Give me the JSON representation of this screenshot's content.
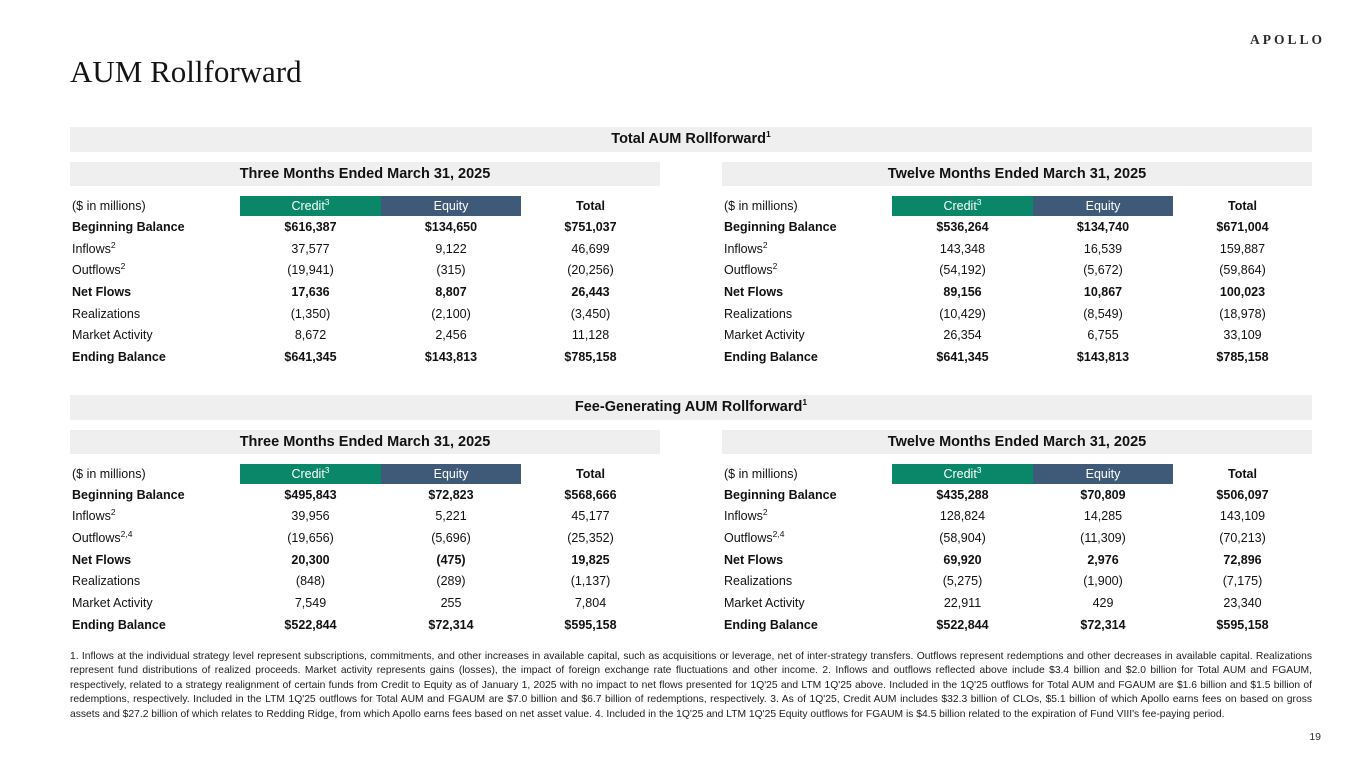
{
  "brand": "APOLLO",
  "page_title": "AUM Rollforward",
  "page_number": "19",
  "colors": {
    "credit_header_bg": "#0A8768",
    "equity_header_bg": "#3F5A78",
    "band_bg": "#EFEFEF",
    "header_text": "#FFFFFF"
  },
  "sections": [
    {
      "title": "Total AUM Rollforward",
      "title_sup": "1",
      "tables": [
        {
          "period": "Three Months Ended March 31, 2025",
          "unit_label": "($ in millions)",
          "columns": [
            {
              "label": "Credit",
              "sup": "3",
              "bg": "credit"
            },
            {
              "label": "Equity",
              "sup": "",
              "bg": "equity"
            },
            {
              "label": "Total",
              "sup": "",
              "bg": "none"
            }
          ],
          "rows": [
            {
              "label": "Beginning Balance",
              "sup": "",
              "bold": true,
              "values": [
                "$616,387",
                "$134,650",
                "$751,037"
              ]
            },
            {
              "label": "Inflows",
              "sup": "2",
              "bold": false,
              "values": [
                "37,577",
                "9,122",
                "46,699"
              ]
            },
            {
              "label": "Outflows",
              "sup": "2",
              "bold": false,
              "values": [
                "(19,941)",
                "(315)",
                "(20,256)"
              ]
            },
            {
              "label": "Net Flows",
              "sup": "",
              "bold": true,
              "values": [
                "17,636",
                "8,807",
                "26,443"
              ]
            },
            {
              "label": "Realizations",
              "sup": "",
              "bold": false,
              "values": [
                "(1,350)",
                "(2,100)",
                "(3,450)"
              ]
            },
            {
              "label": "Market Activity",
              "sup": "",
              "bold": false,
              "values": [
                "8,672",
                "2,456",
                "11,128"
              ]
            },
            {
              "label": "Ending Balance",
              "sup": "",
              "bold": true,
              "values": [
                "$641,345",
                "$143,813",
                "$785,158"
              ]
            }
          ]
        },
        {
          "period": "Twelve Months Ended March 31, 2025",
          "unit_label": "($ in millions)",
          "columns": [
            {
              "label": "Credit",
              "sup": "3",
              "bg": "credit"
            },
            {
              "label": "Equity",
              "sup": "",
              "bg": "equity"
            },
            {
              "label": "Total",
              "sup": "",
              "bg": "none"
            }
          ],
          "rows": [
            {
              "label": "Beginning Balance",
              "sup": "",
              "bold": true,
              "values": [
                "$536,264",
                "$134,740",
                "$671,004"
              ]
            },
            {
              "label": "Inflows",
              "sup": "2",
              "bold": false,
              "values": [
                "143,348",
                "16,539",
                "159,887"
              ]
            },
            {
              "label": "Outflows",
              "sup": "2",
              "bold": false,
              "values": [
                "(54,192)",
                "(5,672)",
                "(59,864)"
              ]
            },
            {
              "label": "Net Flows",
              "sup": "",
              "bold": true,
              "values": [
                "89,156",
                "10,867",
                "100,023"
              ]
            },
            {
              "label": "Realizations",
              "sup": "",
              "bold": false,
              "values": [
                "(10,429)",
                "(8,549)",
                "(18,978)"
              ]
            },
            {
              "label": "Market Activity",
              "sup": "",
              "bold": false,
              "values": [
                "26,354",
                "6,755",
                "33,109"
              ]
            },
            {
              "label": "Ending Balance",
              "sup": "",
              "bold": true,
              "values": [
                "$641,345",
                "$143,813",
                "$785,158"
              ]
            }
          ]
        }
      ]
    },
    {
      "title": "Fee-Generating AUM Rollforward",
      "title_sup": "1",
      "tables": [
        {
          "period": "Three Months Ended March 31, 2025",
          "unit_label": "($ in millions)",
          "columns": [
            {
              "label": "Credit",
              "sup": "3",
              "bg": "credit"
            },
            {
              "label": "Equity",
              "sup": "",
              "bg": "equity"
            },
            {
              "label": "Total",
              "sup": "",
              "bg": "none"
            }
          ],
          "rows": [
            {
              "label": "Beginning Balance",
              "sup": "",
              "bold": true,
              "values": [
                "$495,843",
                "$72,823",
                "$568,666"
              ]
            },
            {
              "label": "Inflows",
              "sup": "2",
              "bold": false,
              "values": [
                "39,956",
                "5,221",
                "45,177"
              ]
            },
            {
              "label": "Outflows",
              "sup": "2,4",
              "bold": false,
              "values": [
                "(19,656)",
                "(5,696)",
                "(25,352)"
              ]
            },
            {
              "label": "Net Flows",
              "sup": "",
              "bold": true,
              "values": [
                "20,300",
                "(475)",
                "19,825"
              ]
            },
            {
              "label": "Realizations",
              "sup": "",
              "bold": false,
              "values": [
                "(848)",
                "(289)",
                "(1,137)"
              ]
            },
            {
              "label": "Market Activity",
              "sup": "",
              "bold": false,
              "values": [
                "7,549",
                "255",
                "7,804"
              ]
            },
            {
              "label": "Ending Balance",
              "sup": "",
              "bold": true,
              "values": [
                "$522,844",
                "$72,314",
                "$595,158"
              ]
            }
          ]
        },
        {
          "period": "Twelve Months Ended March 31, 2025",
          "unit_label": "($ in millions)",
          "columns": [
            {
              "label": "Credit",
              "sup": "3",
              "bg": "credit"
            },
            {
              "label": "Equity",
              "sup": "",
              "bg": "equity"
            },
            {
              "label": "Total",
              "sup": "",
              "bg": "none"
            }
          ],
          "rows": [
            {
              "label": "Beginning Balance",
              "sup": "",
              "bold": true,
              "values": [
                "$435,288",
                "$70,809",
                "$506,097"
              ]
            },
            {
              "label": "Inflows",
              "sup": "2",
              "bold": false,
              "values": [
                "128,824",
                "14,285",
                "143,109"
              ]
            },
            {
              "label": "Outflows",
              "sup": "2,4",
              "bold": false,
              "values": [
                "(58,904)",
                "(11,309)",
                "(70,213)"
              ]
            },
            {
              "label": "Net Flows",
              "sup": "",
              "bold": true,
              "values": [
                "69,920",
                "2,976",
                "72,896"
              ]
            },
            {
              "label": "Realizations",
              "sup": "",
              "bold": false,
              "values": [
                "(5,275)",
                "(1,900)",
                "(7,175)"
              ]
            },
            {
              "label": "Market Activity",
              "sup": "",
              "bold": false,
              "values": [
                "22,911",
                "429",
                "23,340"
              ]
            },
            {
              "label": "Ending Balance",
              "sup": "",
              "bold": true,
              "values": [
                "$522,844",
                "$72,314",
                "$595,158"
              ]
            }
          ]
        }
      ]
    }
  ],
  "footnotes": "1. Inflows at the individual strategy level represent subscriptions, commitments, and other increases in available capital, such as acquisitions or leverage, net of inter-strategy transfers. Outflows represent redemptions and other decreases in available capital. Realizations represent fund distributions of realized proceeds. Market activity represents gains (losses), the impact of foreign exchange rate fluctuations and other income. 2. Inflows and outflows reflected above include $3.4 billion and $2.0 billion for Total AUM and FGAUM, respectively, related to a strategy realignment of certain funds from Credit to Equity as of January 1, 2025 with no impact to net flows presented for 1Q'25 and LTM 1Q'25 above. Included in the 1Q'25 outflows for Total AUM and FGAUM are $1.6 billion and $1.5 billion of redemptions, respectively. Included in the LTM 1Q'25 outflows for Total AUM and FGAUM are $7.0 billion and $6.7 billion of redemptions, respectively. 3. As of 1Q'25, Credit AUM includes $32.3 billion of CLOs, $5.1 billion of which Apollo earns fees on based on gross assets and $27.2 billion of which relates to Redding Ridge, from which Apollo earns fees based on net asset value. 4. Included in the 1Q'25 and LTM 1Q'25 Equity outflows for FGAUM is $4.5 billion related to the expiration of Fund VIII's fee-paying period."
}
